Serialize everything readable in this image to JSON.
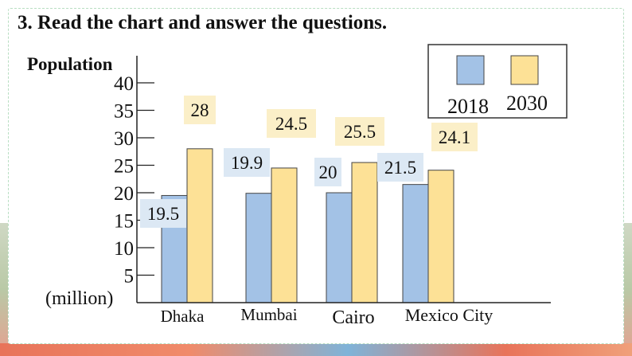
{
  "heading": "3. Read the chart and answer the questions.",
  "colors": {
    "series_2018": "#a3c2e6",
    "series_2030": "#fde196",
    "label_2018_bg": "#dce8f4",
    "label_2030_bg": "#fbefc8"
  },
  "chart_data": {
    "type": "bar",
    "ylabel": "Population",
    "unit_label": "(million)",
    "ylim": [
      0,
      40
    ],
    "yticks": [
      5,
      10,
      15,
      20,
      25,
      30,
      35,
      40
    ],
    "categories": [
      "Dhaka",
      "Mumbai",
      "Cairo",
      "Mexico City"
    ],
    "series": [
      {
        "name": "2018",
        "values": [
          19.5,
          19.9,
          20,
          21.5
        ],
        "labels": [
          "19.5",
          "19.9",
          "20",
          "21.5"
        ]
      },
      {
        "name": "2030",
        "values": [
          28,
          24.5,
          25.5,
          24.1
        ],
        "labels": [
          "28",
          "24.5",
          "25.5",
          "24.1"
        ]
      }
    ],
    "legend": {
      "position": "top-right"
    }
  }
}
